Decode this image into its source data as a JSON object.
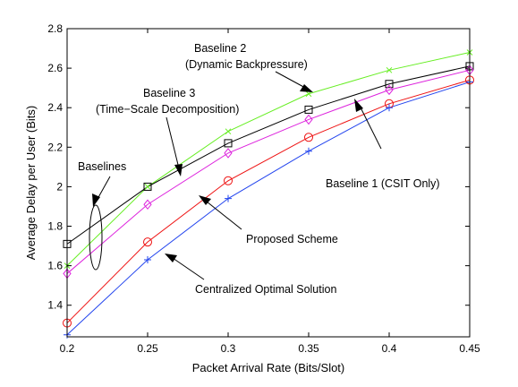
{
  "chart_data": {
    "type": "line",
    "xlabel": "Packet Arrival Rate (Bits/Slot)",
    "ylabel": "Average Delay per User (Bits)",
    "xlim": [
      0.2,
      0.45
    ],
    "ylim": [
      1.24,
      2.8
    ],
    "x_ticks": [
      "0.2",
      "0.25",
      "0.3",
      "0.35",
      "0.4",
      "0.45"
    ],
    "y_ticks": [
      "1.4",
      "1.6",
      "1.8",
      "2",
      "2.2",
      "2.4",
      "2.6",
      "2.8"
    ],
    "x": [
      0.2,
      0.25,
      0.3,
      0.35,
      0.4,
      0.45
    ],
    "grid": false,
    "legend": "none",
    "series": [
      {
        "key": "baseline2",
        "color": "#66ee22",
        "marker": "x",
        "values": [
          1.6,
          2.0,
          2.28,
          2.47,
          2.59,
          2.68
        ]
      },
      {
        "key": "baseline1",
        "color": "#000000",
        "marker": "square",
        "values": [
          1.71,
          2.0,
          2.22,
          2.39,
          2.52,
          2.61
        ]
      },
      {
        "key": "baseline3",
        "color": "#dd22dd",
        "marker": "diamond",
        "values": [
          1.56,
          1.91,
          2.17,
          2.34,
          2.49,
          2.59
        ]
      },
      {
        "key": "proposed",
        "color": "#ee1111",
        "marker": "circle",
        "values": [
          1.31,
          1.72,
          2.03,
          2.25,
          2.42,
          2.54
        ]
      },
      {
        "key": "centralized",
        "color": "#2244ee",
        "marker": "plus",
        "values": [
          1.25,
          1.63,
          1.94,
          2.18,
          2.4,
          2.53
        ]
      }
    ],
    "annotations": {
      "baseline2_line1": "Baseline 2",
      "baseline2_line2": "(Dynamic Backpressure)",
      "baseline3_line1": "Baseline 3",
      "baseline3_line2": "(Time−Scale Decomposition)",
      "baselines": "Baselines",
      "baseline1": "Baseline 1 (CSIT Only)",
      "proposed": "Proposed Scheme",
      "centralized": "Centralized Optimal Solution"
    }
  }
}
